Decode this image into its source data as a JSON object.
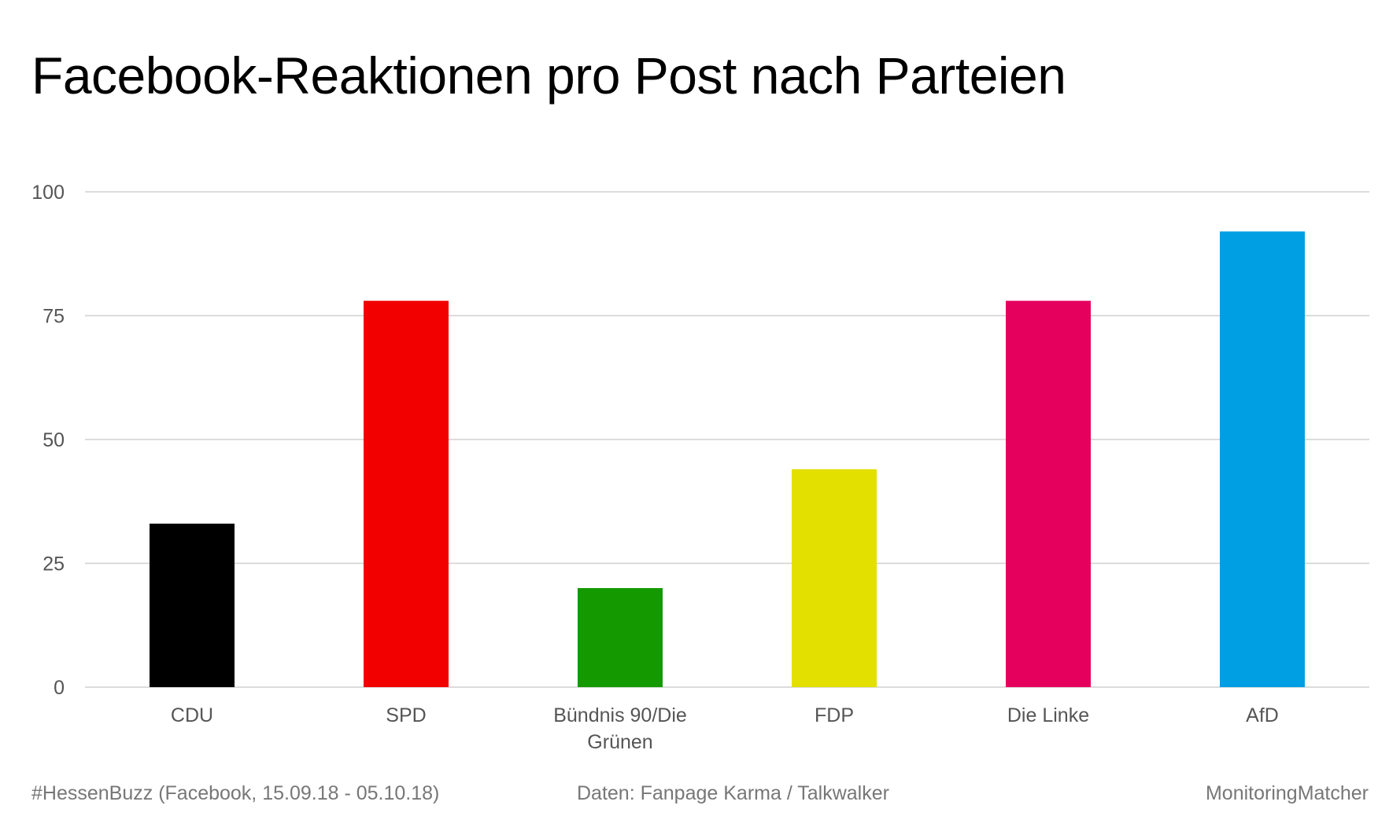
{
  "chart_data": {
    "type": "bar",
    "title": "Facebook-Reaktionen pro Post nach Parteien",
    "xlabel": "",
    "ylabel": "",
    "categories": [
      "CDU",
      "SPD",
      "Bündnis 90/Die Grünen",
      "FDP",
      "Die Linke",
      "AfD"
    ],
    "category_label_lines": [
      [
        "CDU"
      ],
      [
        "SPD"
      ],
      [
        "Bündnis 90/Die",
        "Grünen"
      ],
      [
        "FDP"
      ],
      [
        "Die Linke"
      ],
      [
        "AfD"
      ]
    ],
    "values": [
      33,
      78,
      20,
      44,
      78,
      92
    ],
    "colors": [
      "#000000",
      "#f20000",
      "#149a00",
      "#e3e000",
      "#e5005e",
      "#009ee3"
    ],
    "ylim": [
      0,
      100
    ],
    "yticks": [
      0,
      25,
      50,
      75,
      100
    ],
    "grid": true,
    "legend": "none"
  },
  "footer": {
    "left": "#HessenBuzz (Facebook, 15.09.18 - 05.10.18)",
    "center": "Daten: Fanpage Karma / Talkwalker",
    "right": "MonitoringMatcher"
  },
  "colors": {
    "gridline": "#d0d0d0",
    "axis_text": "#555555",
    "footer_text": "#777777"
  }
}
